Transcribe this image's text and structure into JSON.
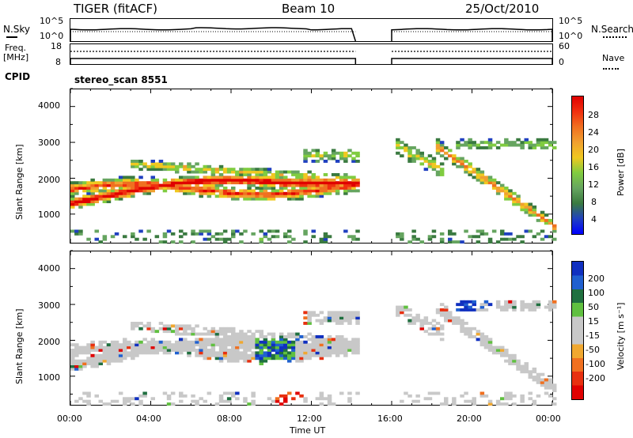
{
  "header": {
    "radar": "TIGER (fitACF)",
    "beam": "Beam 10",
    "date": "25/Oct/2010"
  },
  "status_panels": {
    "nsky_label": "N.Sky",
    "nsky_ticks": [
      "10^5",
      "10^0"
    ],
    "nsearch_label": "N.Search",
    "freq_label": "Freq.",
    "freq_unit": "[MHz]",
    "freq_ticks": [
      "18",
      "8"
    ],
    "nave_label": "Nave",
    "nave_ticks": [
      "60",
      "0"
    ],
    "cpid_label": "CPID",
    "cpid_value": "stereo_scan 8551"
  },
  "chart_data": [
    {
      "type": "heatmap",
      "title": "",
      "xlabel": "Time UT",
      "ylabel": "Slant Range [km]",
      "x_ticks": [
        "00:00",
        "04:00",
        "08:00",
        "12:00",
        "16:00",
        "20:00",
        "00:00"
      ],
      "xlim_hours": [
        0,
        24
      ],
      "y_ticks": [
        "1000",
        "2000",
        "3000",
        "4000"
      ],
      "ylim": [
        180,
        4500
      ],
      "data_gap_hours": [
        14.2,
        16.0
      ],
      "colorbar": {
        "label": "Power [dB]",
        "ticks": [
          "28",
          "24",
          "20",
          "16",
          "12",
          "8",
          "4"
        ],
        "range": [
          0,
          32
        ],
        "colors": [
          "#0000ff",
          "#2040c0",
          "#3a7a40",
          "#66a560",
          "#80cc40",
          "#f0c820",
          "#f0a030",
          "#f07020",
          "#f03010",
          "#e00000"
        ]
      }
    },
    {
      "type": "heatmap",
      "title": "",
      "xlabel": "Time UT",
      "ylabel": "Slant Range [km]",
      "x_ticks": [
        "00:00",
        "04:00",
        "08:00",
        "12:00",
        "16:00",
        "20:00",
        "00:00"
      ],
      "xlim_hours": [
        0,
        24
      ],
      "y_ticks": [
        "1000",
        "2000",
        "3000",
        "4000"
      ],
      "ylim": [
        180,
        4500
      ],
      "data_gap_hours": [
        14.2,
        16.0
      ],
      "colorbar": {
        "label": "Velocity [m s⁻¹]",
        "ticks": [
          "200",
          "100",
          "50",
          "15",
          "-15",
          "-50",
          "-100",
          "-200"
        ],
        "colors": [
          "#1030c0",
          "#2060d0",
          "#207040",
          "#60c040",
          "#c8c8c8",
          "#c8c8c8",
          "#f0a830",
          "#f07020",
          "#e83010",
          "#e00000"
        ]
      }
    }
  ]
}
